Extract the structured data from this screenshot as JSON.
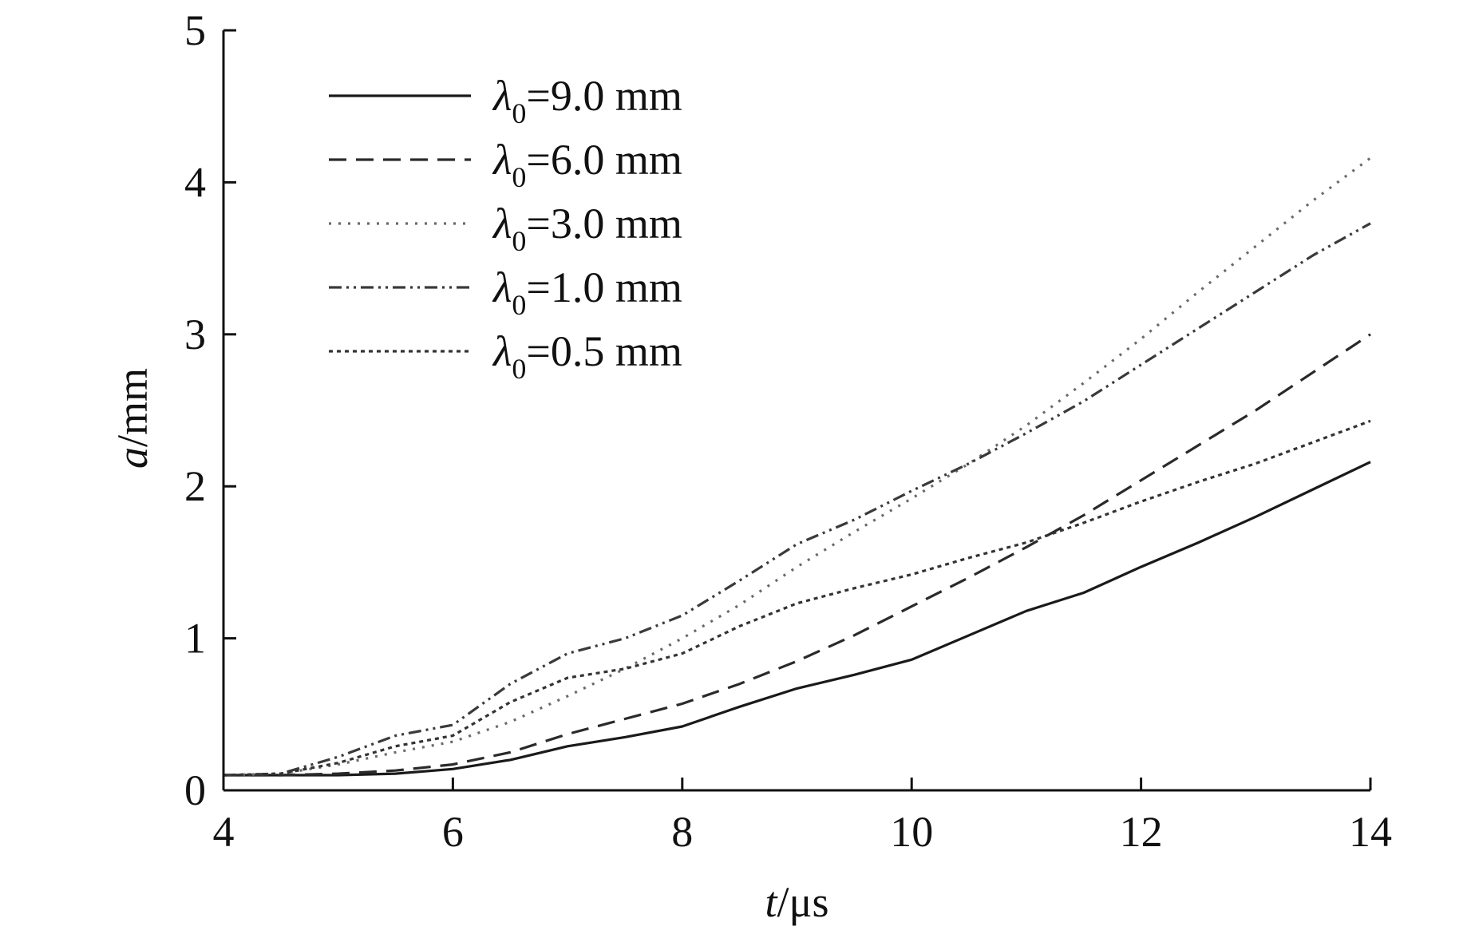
{
  "chart_data": {
    "type": "line",
    "xlabel": {
      "var": "t",
      "unit": "/μs"
    },
    "ylabel": {
      "var": "a",
      "unit": "/mm"
    },
    "xlim": [
      4,
      14
    ],
    "ylim": [
      0,
      5
    ],
    "xticks": [
      "4",
      "6",
      "8",
      "10",
      "12",
      "14"
    ],
    "yticks": [
      "0",
      "1",
      "2",
      "3",
      "4",
      "5"
    ],
    "grid": false,
    "legend_position": "top-left",
    "series": [
      {
        "name": "λ0=9.0 mm",
        "legend": {
          "sym": "λ",
          "sub": "0",
          "rest": "=9.0 mm"
        },
        "style": "solid",
        "color": "#1a1a1a",
        "x": [
          4.0,
          4.5,
          5.0,
          5.5,
          6.0,
          6.5,
          7.0,
          7.5,
          8.0,
          8.5,
          9.0,
          9.5,
          10.0,
          10.5,
          11.0,
          11.5,
          12.0,
          12.5,
          13.0,
          13.5,
          14.0
        ],
        "y": [
          0.1,
          0.1,
          0.1,
          0.11,
          0.14,
          0.2,
          0.29,
          0.35,
          0.42,
          0.55,
          0.67,
          0.76,
          0.86,
          1.02,
          1.18,
          1.3,
          1.47,
          1.63,
          1.8,
          1.98,
          2.16
        ]
      },
      {
        "name": "λ0=6.0 mm",
        "legend": {
          "sym": "λ",
          "sub": "0",
          "rest": "=6.0 mm"
        },
        "style": "dashed",
        "color": "#2a2a2a",
        "x": [
          4.0,
          4.5,
          5.0,
          5.5,
          6.0,
          6.5,
          7.0,
          7.5,
          8.0,
          8.5,
          9.0,
          9.5,
          10.0,
          10.5,
          11.0,
          11.5,
          12.0,
          12.5,
          13.0,
          13.5,
          14.0
        ],
        "y": [
          0.1,
          0.1,
          0.11,
          0.13,
          0.17,
          0.25,
          0.37,
          0.47,
          0.57,
          0.7,
          0.85,
          1.02,
          1.21,
          1.4,
          1.6,
          1.81,
          2.04,
          2.27,
          2.5,
          2.75,
          3.0
        ]
      },
      {
        "name": "λ0=3.0 mm",
        "legend": {
          "sym": "λ",
          "sub": "0",
          "rest": "=3.0 mm"
        },
        "style": "dotted",
        "color": "#6a6a6a",
        "x": [
          4.0,
          4.5,
          5.0,
          5.5,
          6.0,
          6.5,
          7.0,
          7.5,
          8.0,
          8.5,
          9.0,
          9.5,
          10.0,
          10.5,
          11.0,
          11.5,
          12.0,
          12.5,
          13.0,
          13.5,
          14.0
        ],
        "y": [
          0.1,
          0.11,
          0.17,
          0.25,
          0.32,
          0.45,
          0.62,
          0.8,
          1.0,
          1.22,
          1.47,
          1.7,
          1.92,
          2.15,
          2.4,
          2.68,
          2.97,
          3.28,
          3.58,
          3.88,
          4.16
        ]
      },
      {
        "name": "λ0=1.0 mm",
        "legend": {
          "sym": "λ",
          "sub": "0",
          "rest": "=1.0 mm"
        },
        "style": "dashdotdot",
        "color": "#3a3a3a",
        "x": [
          4.0,
          4.5,
          5.0,
          5.5,
          6.0,
          6.5,
          7.0,
          7.5,
          8.0,
          8.5,
          9.0,
          9.5,
          10.0,
          10.5,
          11.0,
          11.5,
          12.0,
          12.5,
          13.0,
          13.5,
          14.0
        ],
        "y": [
          0.1,
          0.11,
          0.22,
          0.36,
          0.43,
          0.7,
          0.9,
          1.0,
          1.15,
          1.38,
          1.62,
          1.78,
          1.97,
          2.15,
          2.35,
          2.56,
          2.8,
          3.04,
          3.28,
          3.52,
          3.73
        ]
      },
      {
        "name": "λ0=0.5 mm",
        "legend": {
          "sym": "λ",
          "sub": "0",
          "rest": "=0.5 mm"
        },
        "style": "densedot",
        "color": "#333333",
        "x": [
          4.0,
          4.5,
          5.0,
          5.5,
          6.0,
          6.5,
          7.0,
          7.5,
          8.0,
          8.5,
          9.0,
          9.5,
          10.0,
          10.5,
          11.0,
          11.5,
          12.0,
          12.5,
          13.0,
          13.5,
          14.0
        ],
        "y": [
          0.1,
          0.11,
          0.18,
          0.29,
          0.36,
          0.58,
          0.74,
          0.8,
          0.9,
          1.08,
          1.23,
          1.33,
          1.42,
          1.53,
          1.63,
          1.76,
          1.9,
          2.03,
          2.15,
          2.29,
          2.43
        ]
      }
    ]
  }
}
